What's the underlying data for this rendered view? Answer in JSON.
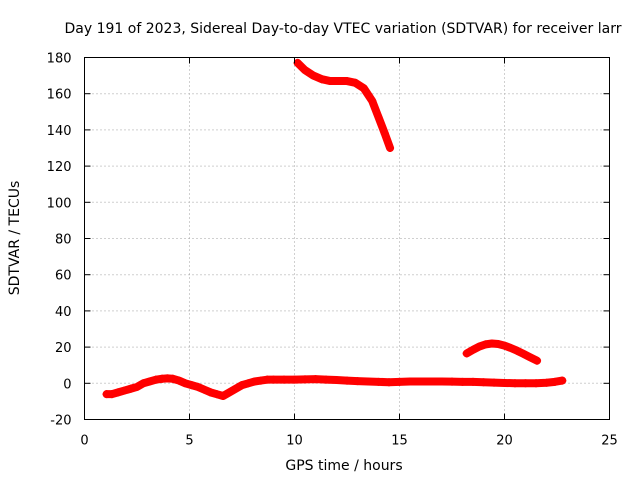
{
  "chart_data": {
    "type": "scatter",
    "title": "Day 191 of 2023, Sidereal Day-to-day VTEC variation (SDTVAR) for receiver larr",
    "xlabel": "GPS time / hours",
    "ylabel": "SDTVAR / TECUs",
    "xlim": [
      0,
      25
    ],
    "ylim": [
      -20,
      180
    ],
    "x_ticks": [
      0,
      5,
      10,
      15,
      20,
      25
    ],
    "y_ticks": [
      -20,
      0,
      20,
      40,
      60,
      80,
      100,
      120,
      140,
      160,
      180
    ],
    "grid": true,
    "marker": "plus",
    "color": "#ff0000",
    "series": [
      {
        "x": [
          1.05,
          1.3,
          1.6,
          1.9,
          2.2,
          2.5,
          2.8,
          3.1,
          3.4,
          3.7,
          3.95,
          4.2,
          4.5,
          4.8,
          5.1,
          5.4,
          5.7,
          6.0,
          6.3,
          6.6,
          6.9,
          7.2,
          7.5,
          7.8,
          8.1,
          8.4,
          8.7,
          9.0,
          9.5,
          10.0,
          10.5,
          11.0,
          11.5,
          12.0,
          12.5,
          13.0,
          13.5,
          14.0,
          14.5,
          15.0,
          15.5,
          16.0,
          16.5,
          17.0,
          17.5,
          18.0,
          18.5,
          19.0,
          19.5,
          20.0,
          20.5,
          21.0,
          21.5,
          22.0,
          22.4,
          22.75
        ],
        "y": [
          -6,
          -6,
          -5,
          -4,
          -3,
          -2,
          0,
          1,
          2,
          2.5,
          2.7,
          2.5,
          1.5,
          0,
          -1,
          -2,
          -3.5,
          -5,
          -6,
          -7,
          -5,
          -3,
          -1,
          0,
          1,
          1.5,
          2,
          2,
          2,
          2,
          2.2,
          2.3,
          2,
          1.8,
          1.5,
          1.2,
          1,
          0.8,
          0.6,
          0.8,
          1,
          1,
          1,
          1,
          0.9,
          0.8,
          0.8,
          0.6,
          0.4,
          0.2,
          0,
          0,
          0,
          0.3,
          0.8,
          1.5
        ]
      },
      {
        "x": [
          10.15,
          10.5,
          10.9,
          11.3,
          11.7,
          12.1,
          12.5,
          12.9,
          13.3,
          13.7,
          14.0,
          14.3,
          14.55
        ],
        "y": [
          177,
          173,
          170,
          168,
          167,
          167,
          167,
          166,
          163,
          156,
          147,
          138,
          130
        ]
      },
      {
        "x": [
          18.2,
          18.5,
          18.8,
          19.1,
          19.4,
          19.7,
          20.0,
          20.3,
          20.6,
          20.9,
          21.2,
          21.55
        ],
        "y": [
          16.5,
          18.5,
          20.3,
          21.5,
          22,
          21.7,
          20.8,
          19.5,
          18,
          16.3,
          14.5,
          12.5
        ]
      }
    ]
  }
}
